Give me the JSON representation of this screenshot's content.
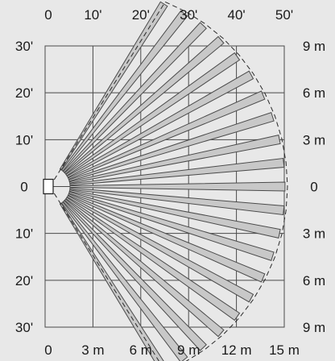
{
  "background": "#e8e8e8",
  "grid_color": "#4a4a4a",
  "zone_fill": "#c8c8c8",
  "zone_stroke": "#4a4a4a",
  "sensor": {
    "name": "motion-sensor-icon"
  },
  "top_axis": {
    "labels": [
      "0",
      "10'",
      "20'",
      "30'",
      "40'",
      "50'"
    ]
  },
  "bottom_axis": {
    "labels": [
      "0",
      "3 m",
      "6 m",
      "9 m",
      "12 m",
      "15 m"
    ]
  },
  "left_axis": {
    "labels": [
      "30'",
      "20'",
      "10'",
      "0",
      "10'",
      "20'",
      "30'"
    ]
  },
  "right_axis": {
    "labels": [
      "9 m",
      "6 m",
      "3 m",
      "0",
      "3 m",
      "6 m",
      "9 m"
    ]
  }
}
